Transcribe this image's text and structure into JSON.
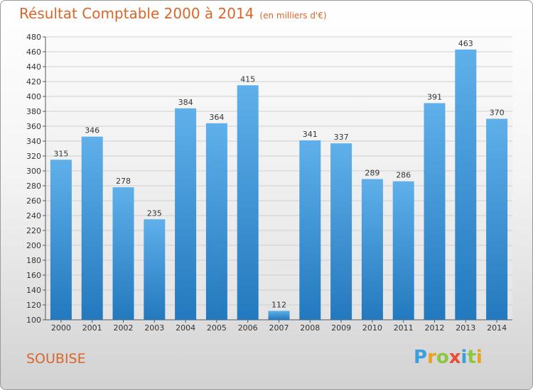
{
  "title": {
    "main": "Résultat Comptable 2000 à 2014",
    "sub": "(en milliers d'€)"
  },
  "place_name": "SOUBISE",
  "logo": {
    "letters": [
      {
        "char": "P",
        "color": "#3aa0dc"
      },
      {
        "char": "r",
        "color": "#e8a21f"
      },
      {
        "char": "o",
        "color": "#8dc63f"
      },
      {
        "char": "x",
        "color": "#e84c3d"
      },
      {
        "char": "i",
        "color": "#3aa0dc"
      },
      {
        "char": "t",
        "color": "#8dc63f"
      },
      {
        "char": "i",
        "color": "#e8a21f"
      }
    ]
  },
  "colors": {
    "title": "#d9662a",
    "bar_top": "#5fb0ea",
    "bar_bottom": "#2379be",
    "grid": "#cfcfcf"
  },
  "chart_data": {
    "type": "bar",
    "categories": [
      "2000",
      "2001",
      "2002",
      "2003",
      "2004",
      "2005",
      "2006",
      "2007",
      "2008",
      "2009",
      "2010",
      "2011",
      "2012",
      "2013",
      "2014"
    ],
    "values": [
      315,
      346,
      278,
      235,
      384,
      364,
      415,
      112,
      341,
      337,
      289,
      286,
      391,
      463,
      370
    ],
    "ylim": [
      100,
      480
    ],
    "yticks": [
      100,
      120,
      140,
      160,
      180,
      200,
      220,
      240,
      260,
      280,
      300,
      320,
      340,
      360,
      380,
      400,
      420,
      440,
      460,
      480
    ],
    "grid": true
  }
}
